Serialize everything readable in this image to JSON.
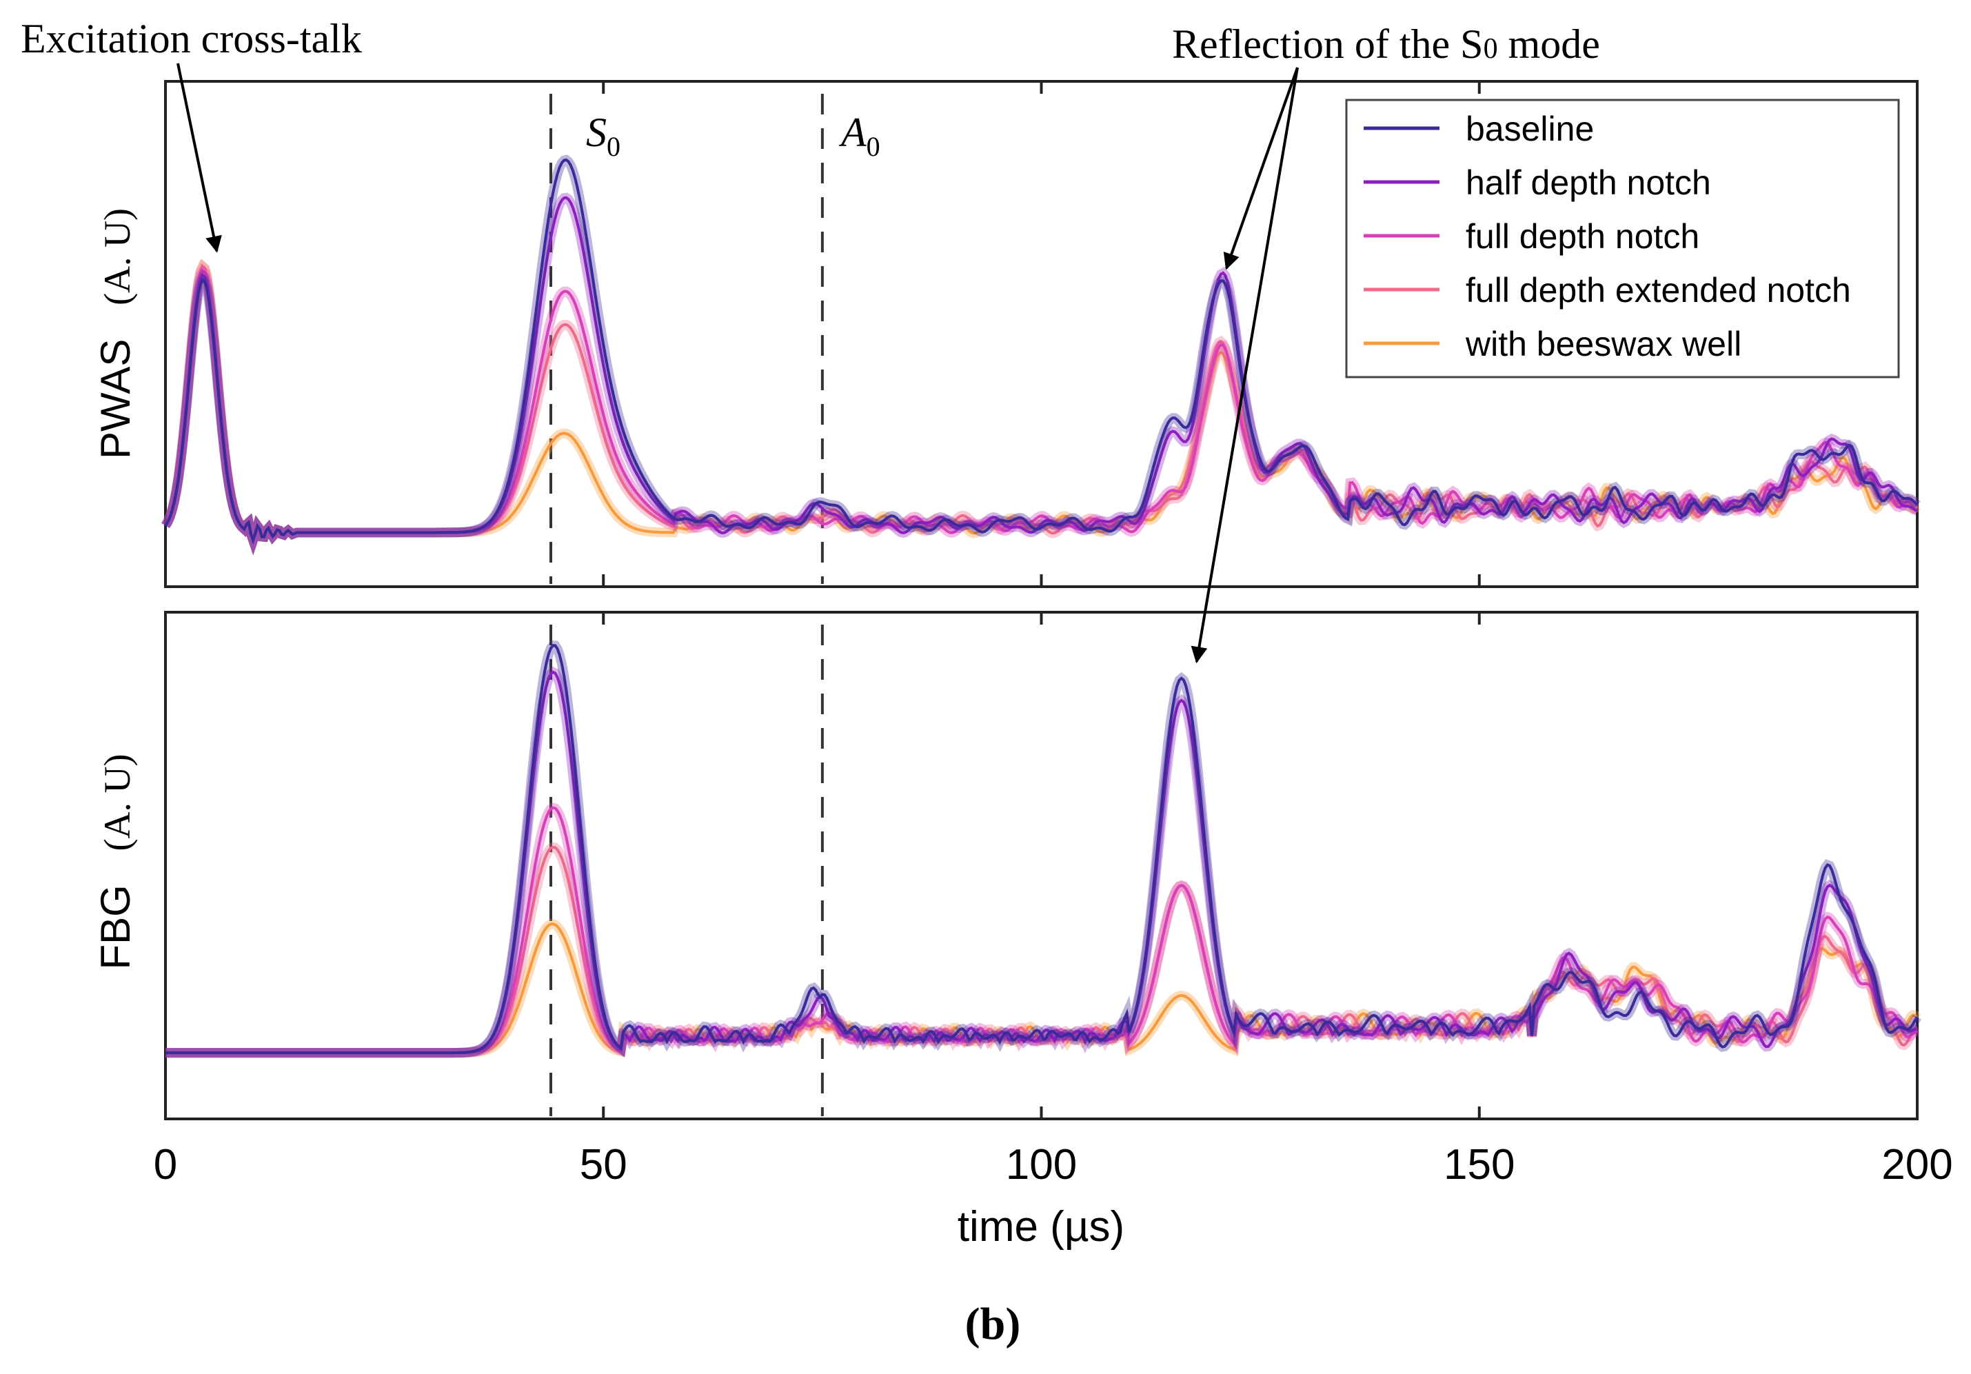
{
  "chart_data": {
    "type": "line",
    "xlabel": "time (µs)",
    "xlim": [
      0,
      200
    ],
    "x_ticks": [
      "0",
      "50",
      "100",
      "150",
      "200"
    ],
    "caption": "(b)",
    "series_names": [
      "baseline",
      "half depth notch",
      "full depth notch",
      "full depth extended notch",
      "with beeswax well"
    ],
    "colors": {
      "baseline": "#3b2a9a",
      "half depth notch": "#8e1fbf",
      "full depth notch": "#d940b8",
      "full depth extended notch": "#ef6a8a",
      "with beeswax well": "#f99a3a"
    },
    "mode_lines": [
      {
        "label": "S",
        "sub": "0",
        "x": 44
      },
      {
        "label": "A",
        "sub": "0",
        "x": 75
      }
    ],
    "annotations": {
      "crosstalk": {
        "text": "Excitation cross-talk",
        "target_x": 3.5
      },
      "reflection": {
        "text_main": "Reflection of the S",
        "text_sub": "0",
        "text_end": " mode",
        "target_top_x": 120.5,
        "target_bottom_x": 116
      }
    },
    "panels": [
      {
        "name": "PWAS",
        "ylabel": "PWAS",
        "yunit": "(A. U)",
        "ylim": [
          -0.12,
          1.0
        ],
        "peaks": {
          "crosstalk": {
            "center": 4.3,
            "width": 1.6,
            "amps": [
              0.56,
              0.57,
              0.58,
              0.59,
              0.59
            ]
          },
          "s0": {
            "center": 45.5,
            "width": 3.2,
            "amps": [
              0.8,
              0.72,
              0.52,
              0.45,
              0.22
            ]
          },
          "s0b": {
            "center": 52,
            "width": 3.5,
            "amps": [
              0.14,
              0.12,
              0.08,
              0.06,
              0.0
            ]
          },
          "refl1": {
            "center": 114.5,
            "width": 1.6,
            "amps": [
              0.22,
              0.18,
              0.05,
              0.05,
              0.05
            ]
          },
          "refl": {
            "center": 120.5,
            "width": 2.2,
            "amps": [
              0.55,
              0.55,
              0.38,
              0.4,
              0.38
            ]
          },
          "a0": {
            "center": 75,
            "width": 2.0,
            "amps": [
              0.045,
              0.03,
              0.02,
              0.02,
              0.015
            ]
          },
          "late1": {
            "center": 129,
            "width": 3.0,
            "amps": [
              0.17,
              0.17,
              0.16,
              0.16,
              0.16
            ]
          },
          "late2": {
            "center": 190,
            "width": 3.8,
            "amps": [
              0.13,
              0.13,
              0.11,
              0.09,
              0.08
            ]
          }
        }
      },
      {
        "name": "FBG",
        "ylabel": "FBG",
        "yunit": "(A. U)",
        "ylim": [
          -0.15,
          1.0
        ],
        "peaks": {
          "s0": {
            "center": 43.8,
            "width": 2.6,
            "amps": [
              0.82,
              0.78,
              0.5,
              0.42,
              0.27
            ]
          },
          "s0b": {
            "center": 46.5,
            "width": 2.0,
            "amps": [
              0.22,
              0.18,
              0.12,
              0.1,
              0.05
            ]
          },
          "refl": {
            "center": 116,
            "width": 2.5,
            "amps": [
              0.85,
              0.8,
              0.38,
              0.38,
              0.13
            ]
          },
          "a0": {
            "center": 74.5,
            "width": 1.8,
            "amps": [
              0.1,
              0.07,
              0.04,
              0.04,
              0.03
            ]
          },
          "late1": {
            "center": 160,
            "width": 2.5,
            "amps": [
              0.14,
              0.14,
              0.14,
              0.13,
              0.13
            ]
          },
          "late2": {
            "center": 168,
            "width": 3.0,
            "amps": [
              0.05,
              0.09,
              0.11,
              0.12,
              0.12
            ]
          },
          "late3": {
            "center": 190,
            "width": 2.0,
            "amps": [
              0.38,
              0.33,
              0.24,
              0.2,
              0.2
            ]
          },
          "late4": {
            "center": 194,
            "width": 1.5,
            "amps": [
              0.12,
              0.12,
              0.1,
              0.1,
              0.1
            ]
          }
        }
      }
    ]
  }
}
